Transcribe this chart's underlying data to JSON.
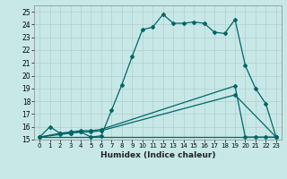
{
  "xlabel": "Humidex (Indice chaleur)",
  "bg_color": "#c8e8e8",
  "line_color": "#006666",
  "grid_color": "#b0cece",
  "xlim": [
    -0.5,
    23.5
  ],
  "ylim": [
    15,
    25.5
  ],
  "yticks": [
    15,
    16,
    17,
    18,
    19,
    20,
    21,
    22,
    23,
    24,
    25
  ],
  "xticks": [
    0,
    1,
    2,
    3,
    4,
    5,
    6,
    7,
    8,
    9,
    10,
    11,
    12,
    13,
    14,
    15,
    16,
    17,
    18,
    19,
    20,
    21,
    22,
    23
  ],
  "lines": [
    {
      "x": [
        0,
        1,
        2,
        3,
        4,
        5,
        6,
        7,
        8,
        9,
        10,
        11,
        12,
        13,
        14,
        15,
        16,
        17,
        18,
        19,
        20,
        21,
        22,
        23
      ],
      "y": [
        15.2,
        16.0,
        15.5,
        15.5,
        15.6,
        15.2,
        15.3,
        17.3,
        19.3,
        21.5,
        23.6,
        23.8,
        24.8,
        24.1,
        24.1,
        24.2,
        24.1,
        23.4,
        23.3,
        24.4,
        20.8,
        19.0,
        17.8,
        15.2
      ],
      "markers": true
    },
    {
      "x": [
        0,
        2,
        3,
        4,
        5,
        6,
        19,
        20,
        21,
        22,
        23
      ],
      "y": [
        15.2,
        15.5,
        15.6,
        15.7,
        15.7,
        15.8,
        19.2,
        15.2,
        15.2,
        15.2,
        15.2
      ],
      "markers": true
    },
    {
      "x": [
        0,
        2,
        3,
        4,
        5,
        6,
        19,
        23
      ],
      "y": [
        15.2,
        15.4,
        15.5,
        15.6,
        15.6,
        15.7,
        18.5,
        15.2
      ],
      "markers": true
    },
    {
      "x": [
        0,
        23
      ],
      "y": [
        15.2,
        15.2
      ],
      "markers": false
    }
  ]
}
